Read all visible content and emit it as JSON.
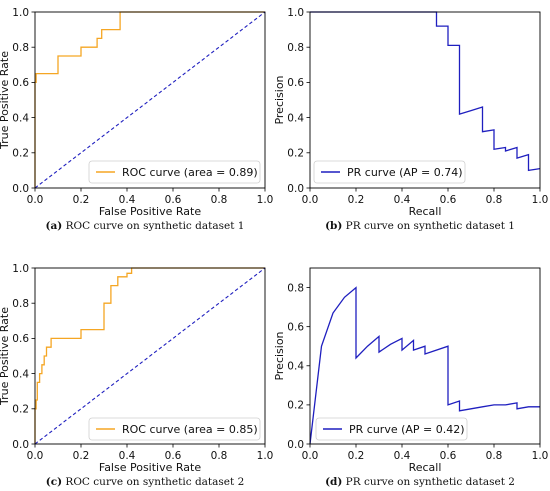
{
  "chart_data": [
    {
      "type": "line",
      "panel": "a",
      "caption": {
        "tag": "(a)",
        "text": "ROC curve on synthetic dataset 1"
      },
      "xlabel": "False Positive Rate",
      "ylabel": "True Positive Rate",
      "xlim": [
        0,
        1
      ],
      "ylim": [
        0,
        1
      ],
      "xticks": [
        "0.0",
        "0.2",
        "0.4",
        "0.6",
        "0.8",
        "1.0"
      ],
      "yticks": [
        "0.0",
        "0.2",
        "0.4",
        "0.6",
        "0.8",
        "1.0"
      ],
      "grid": false,
      "legend_position": "bottom-right",
      "colors": {
        "curve": "#f5a623",
        "baseline": "#1f1fbf"
      },
      "series": [
        {
          "name": "ROC curve (area = 0.89)",
          "x": [
            0,
            0,
            0,
            0.005,
            0.005,
            0.02,
            0.02,
            0.1,
            0.1,
            0.2,
            0.2,
            0.27,
            0.27,
            0.29,
            0.29,
            0.37,
            0.37,
            0.9,
            0.9,
            1.0
          ],
          "y": [
            0,
            0.55,
            0.6,
            0.6,
            0.65,
            0.65,
            0.65,
            0.65,
            0.75,
            0.75,
            0.8,
            0.8,
            0.85,
            0.85,
            0.9,
            0.9,
            1.0,
            1.0,
            1.0,
            1.0
          ]
        },
        {
          "role": "baseline",
          "x": [
            0,
            1
          ],
          "y": [
            0,
            1
          ]
        }
      ]
    },
    {
      "type": "line",
      "panel": "b",
      "caption": {
        "tag": "(b)",
        "text": "PR curve on synthetic dataset 1"
      },
      "xlabel": "Recall",
      "ylabel": "Precision",
      "xlim": [
        0,
        1
      ],
      "ylim": [
        0,
        1
      ],
      "xticks": [
        "0.0",
        "0.2",
        "0.4",
        "0.6",
        "0.8",
        "1.0"
      ],
      "yticks": [
        "0.0",
        "0.2",
        "0.4",
        "0.6",
        "0.8",
        "1.0"
      ],
      "grid": false,
      "legend_position": "bottom-left",
      "colors": {
        "curve": "#1f1fbf"
      },
      "series": [
        {
          "name": "PR curve (AP = 0.74)",
          "x": [
            0,
            0.55,
            0.55,
            0.6,
            0.6,
            0.65,
            0.65,
            0.7,
            0.75,
            0.75,
            0.8,
            0.8,
            0.85,
            0.85,
            0.9,
            0.9,
            0.95,
            0.95,
            1.0
          ],
          "y": [
            1.0,
            1.0,
            0.92,
            0.92,
            0.81,
            0.81,
            0.42,
            0.44,
            0.46,
            0.32,
            0.33,
            0.22,
            0.23,
            0.21,
            0.23,
            0.17,
            0.19,
            0.1,
            0.11
          ]
        }
      ]
    },
    {
      "type": "line",
      "panel": "c",
      "caption": {
        "tag": "(c)",
        "text": "ROC curve on synthetic dataset 2"
      },
      "xlabel": "False Positive Rate",
      "ylabel": "True Positive Rate",
      "xlim": [
        0,
        1
      ],
      "ylim": [
        0,
        1
      ],
      "xticks": [
        "0.0",
        "0.2",
        "0.4",
        "0.6",
        "0.8",
        "1.0"
      ],
      "yticks": [
        "0.0",
        "0.2",
        "0.4",
        "0.6",
        "0.8",
        "1.0"
      ],
      "grid": false,
      "legend_position": "bottom-right",
      "colors": {
        "curve": "#f5a623",
        "baseline": "#1f1fbf"
      },
      "series": [
        {
          "name": "ROC curve (area = 0.85)",
          "x": [
            0,
            0,
            0.005,
            0.005,
            0.01,
            0.01,
            0.02,
            0.02,
            0.03,
            0.03,
            0.04,
            0.04,
            0.05,
            0.05,
            0.07,
            0.07,
            0.2,
            0.2,
            0.3,
            0.3,
            0.33,
            0.33,
            0.36,
            0.36,
            0.4,
            0.4,
            0.42,
            0.42,
            1.0
          ],
          "y": [
            0,
            0.2,
            0.2,
            0.25,
            0.25,
            0.35,
            0.35,
            0.4,
            0.4,
            0.45,
            0.45,
            0.5,
            0.5,
            0.55,
            0.55,
            0.6,
            0.6,
            0.65,
            0.65,
            0.8,
            0.8,
            0.9,
            0.9,
            0.95,
            0.95,
            0.97,
            0.97,
            1.0,
            1.0
          ]
        },
        {
          "role": "baseline",
          "x": [
            0,
            1
          ],
          "y": [
            0,
            1
          ]
        }
      ]
    },
    {
      "type": "line",
      "panel": "d",
      "caption": {
        "tag": "(d)",
        "text": "PR curve on synthetic dataset 2"
      },
      "xlabel": "Recall",
      "ylabel": "Precision",
      "xlim": [
        0,
        1
      ],
      "ylim": [
        0,
        0.9
      ],
      "xticks": [
        "0.0",
        "0.2",
        "0.4",
        "0.6",
        "0.8",
        "1.0"
      ],
      "yticks": [
        "0.0",
        "0.2",
        "0.4",
        "0.6",
        "0.8"
      ],
      "grid": false,
      "legend_position": "bottom-left",
      "colors": {
        "curve": "#1f1fbf"
      },
      "series": [
        {
          "name": "PR curve (AP = 0.42)",
          "x": [
            0,
            0.05,
            0.1,
            0.15,
            0.2,
            0.2,
            0.25,
            0.3,
            0.3,
            0.35,
            0.4,
            0.4,
            0.45,
            0.45,
            0.5,
            0.5,
            0.6,
            0.6,
            0.65,
            0.65,
            0.7,
            0.75,
            0.8,
            0.85,
            0.9,
            0.9,
            0.95,
            1.0
          ],
          "y": [
            0,
            0.5,
            0.67,
            0.75,
            0.8,
            0.44,
            0.5,
            0.55,
            0.47,
            0.51,
            0.54,
            0.48,
            0.53,
            0.48,
            0.5,
            0.46,
            0.5,
            0.2,
            0.22,
            0.17,
            0.18,
            0.19,
            0.2,
            0.2,
            0.21,
            0.18,
            0.19,
            0.19
          ]
        }
      ]
    }
  ]
}
